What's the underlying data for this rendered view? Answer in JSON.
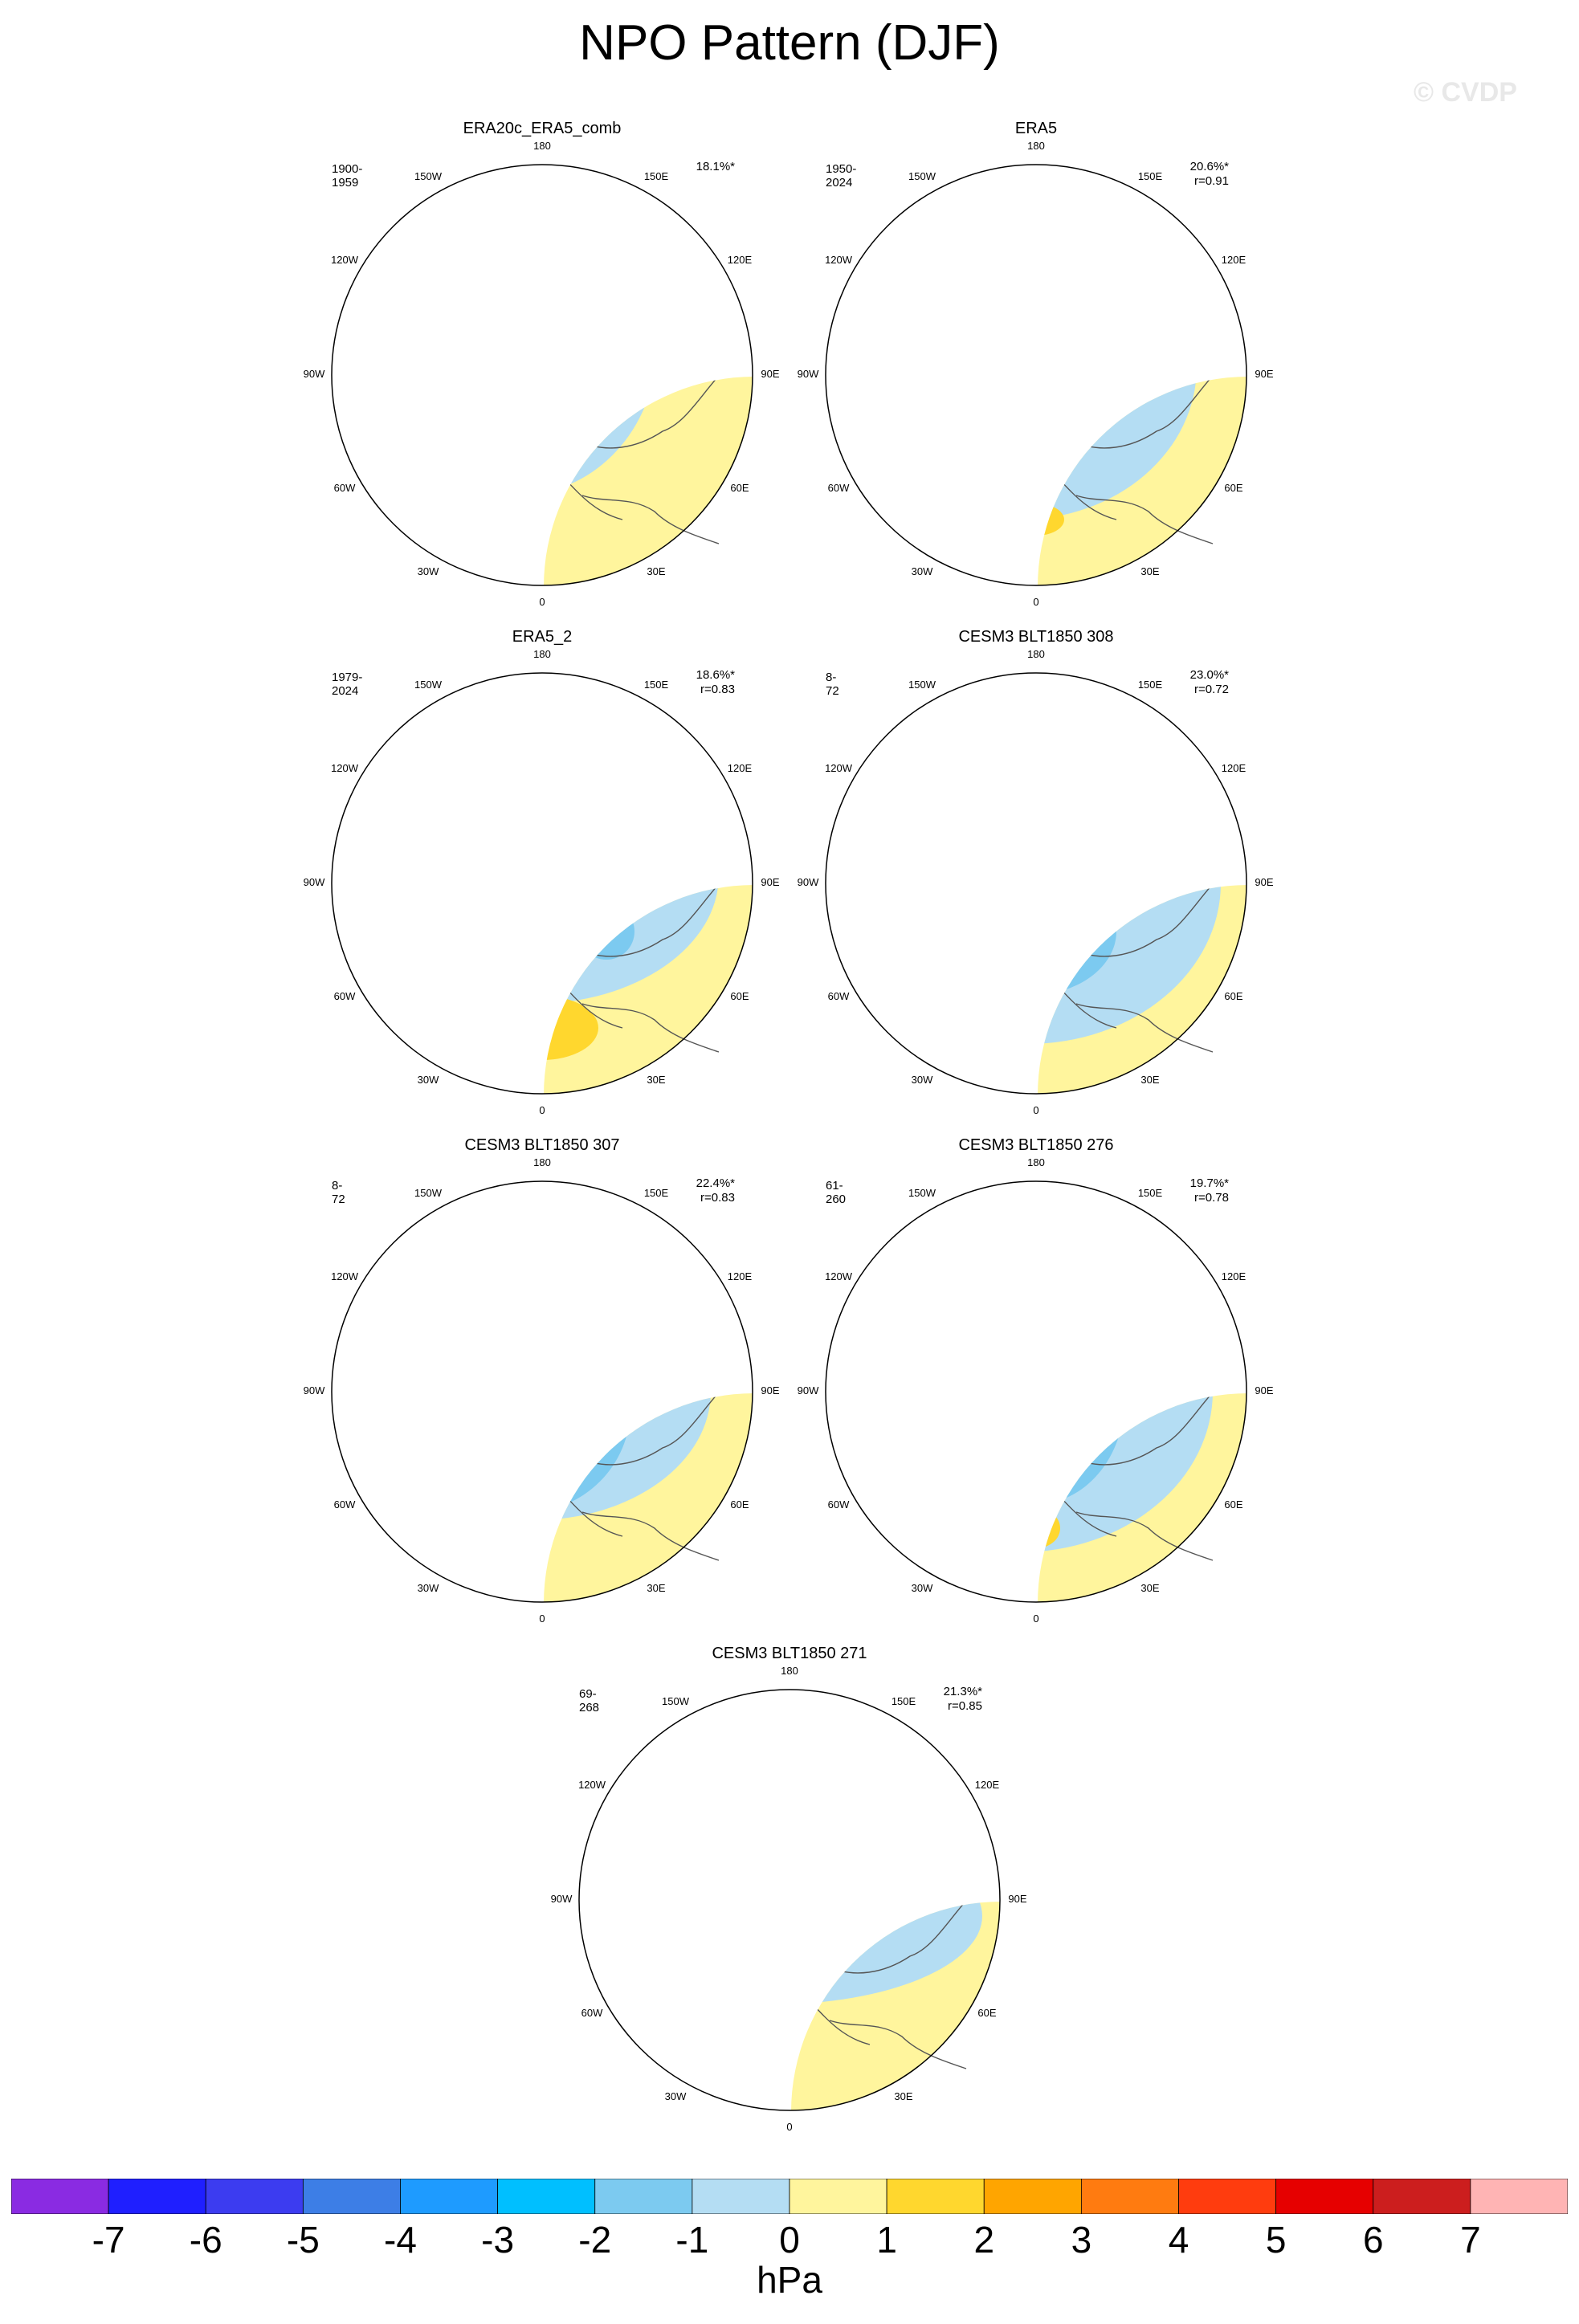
{
  "title": "NPO Pattern (DJF)",
  "watermark": "© CVDP",
  "longitude_labels": [
    "180",
    "150E",
    "120E",
    "90E",
    "60E",
    "30E",
    "0",
    "30W",
    "60W",
    "90W",
    "120W",
    "150W"
  ],
  "panels": [
    {
      "title": "ERA20c_ERA5_comb",
      "period": "1900-1959",
      "pct": "18.1%*",
      "r": ""
    },
    {
      "title": "ERA5",
      "period": "1950-2024",
      "pct": "20.6%*",
      "r": "r=0.91"
    },
    {
      "title": "ERA5_2",
      "period": "1979-2024",
      "pct": "18.6%*",
      "r": "r=0.83"
    },
    {
      "title": "CESM3 BLT1850 308",
      "period": "8-72",
      "pct": "23.0%*",
      "r": "r=0.72"
    },
    {
      "title": "CESM3 BLT1850 307",
      "period": "8-72",
      "pct": "22.4%*",
      "r": "r=0.83"
    },
    {
      "title": "CESM3 BLT1850 276",
      "period": "61-260",
      "pct": "19.7%*",
      "r": "r=0.78"
    },
    {
      "title": "CESM3 BLT1850 271",
      "period": "69-268",
      "pct": "21.3%*",
      "r": "r=0.85"
    }
  ],
  "colorbar": {
    "unit": "hPa",
    "ticks": [
      "-7",
      "-6",
      "-5",
      "-4",
      "-3",
      "-2",
      "-1",
      "0",
      "1",
      "2",
      "3",
      "4",
      "5",
      "6",
      "7"
    ],
    "colors": [
      "#8a2be2",
      "#1f1fff",
      "#3c3cf0",
      "#3d7ee6",
      "#1e9bff",
      "#00bfff",
      "#7ccaf0",
      "#b4ddf3",
      "#fff59d",
      "#ffd72e",
      "#ffa500",
      "#ff7b10",
      "#ff3c0e",
      "#e60000",
      "#cc1e1e",
      "#ffb4b4"
    ]
  },
  "map_colors": {
    "ocean_bg": "#fff59d",
    "land_line": "#555555",
    "pos1": "#ffd72e",
    "pos2": "#ffa500",
    "neg1": "#b4ddf3",
    "neg2": "#7ccaf0",
    "neg3": "#00bfff",
    "neg4": "#1e9bff",
    "neg5": "#3d7ee6",
    "neg6": "#3c3cf0"
  }
}
